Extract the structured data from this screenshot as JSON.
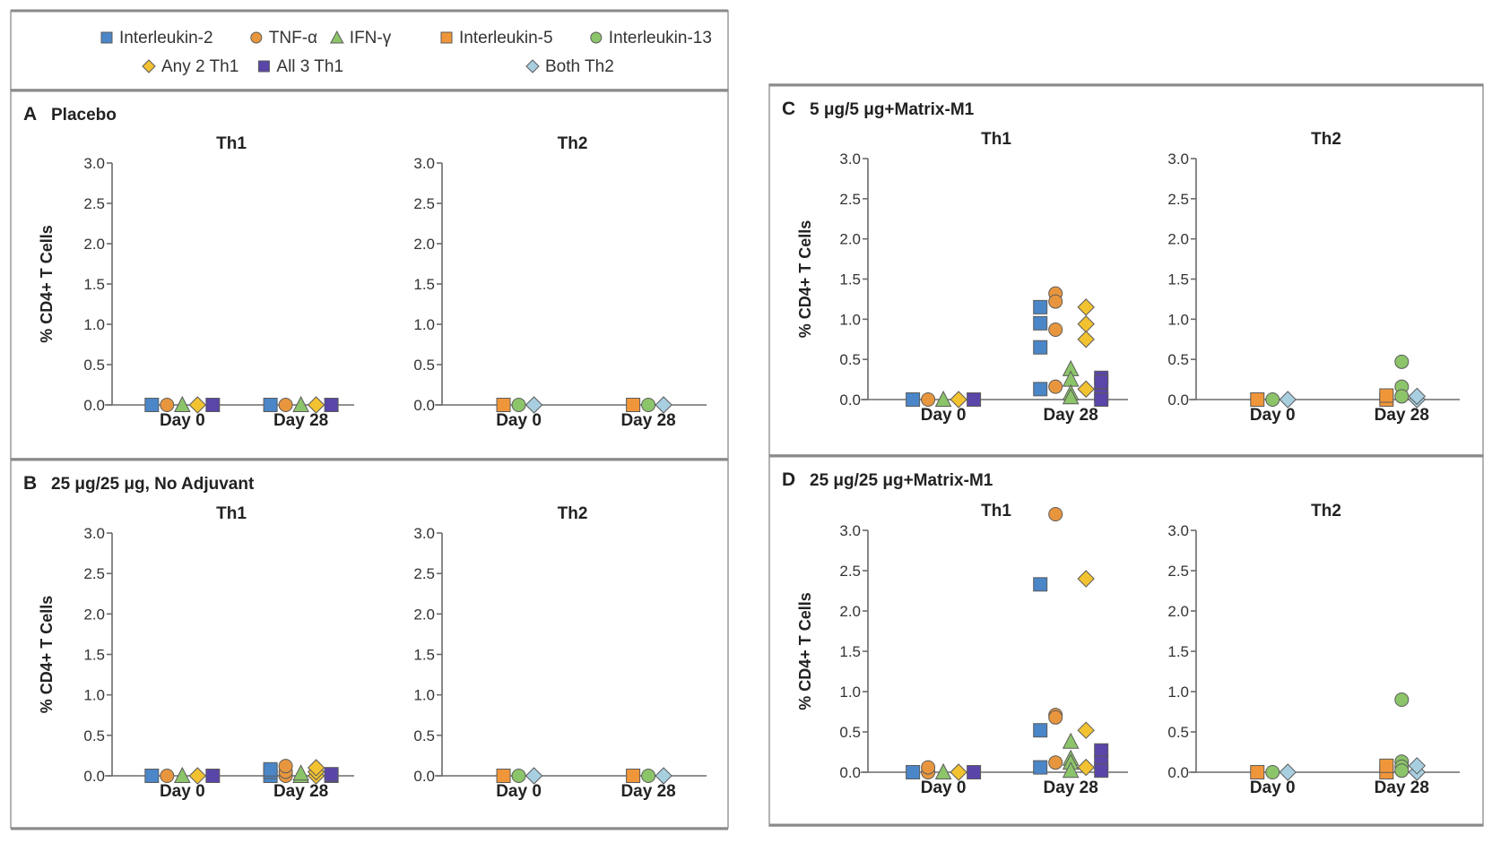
{
  "legend": {
    "th1": [
      {
        "key": "il2",
        "label": "Interleukin-2",
        "shape": "square",
        "color": "#4a86c8"
      },
      {
        "key": "tnf",
        "label": "TNF-α",
        "shape": "circle",
        "color": "#e8963e"
      },
      {
        "key": "ifn",
        "label": "IFN-γ",
        "shape": "triangle",
        "color": "#8cc46a"
      }
    ],
    "th1_row2": [
      {
        "key": "any2",
        "label": "Any 2 Th1",
        "shape": "diamond",
        "color": "#f2c230"
      },
      {
        "key": "all3",
        "label": "All 3 Th1",
        "shape": "square",
        "color": "#5a45a8"
      }
    ],
    "th2": [
      {
        "key": "il5",
        "label": "Interleukin-5",
        "shape": "square",
        "color": "#f0963a"
      },
      {
        "key": "il13",
        "label": "Interleukin-13",
        "shape": "circle",
        "color": "#8cc46a"
      }
    ],
    "th2_row2": [
      {
        "key": "both",
        "label": "Both Th2",
        "shape": "diamond",
        "color": "#a8cfe0"
      }
    ]
  },
  "chart_data": [
    {
      "panel": "A",
      "title": "Placebo",
      "type": "scatter",
      "ylabel": "% CD4+ T Cells",
      "ylim": [
        0,
        3.0
      ],
      "yticks": [
        "0.0",
        "0.5",
        "1.0",
        "1.5",
        "2.0",
        "2.5",
        "3.0"
      ],
      "subplots": [
        {
          "name": "Th1",
          "categories": [
            "Day 0",
            "Day 28"
          ],
          "series": [
            {
              "key": "il2",
              "values": [
                [
                  0
                ],
                [
                  0
                ]
              ]
            },
            {
              "key": "tnf",
              "values": [
                [
                  0
                ],
                [
                  0
                ]
              ]
            },
            {
              "key": "ifn",
              "values": [
                [
                  0
                ],
                [
                  0
                ]
              ]
            },
            {
              "key": "any2",
              "values": [
                [
                  0
                ],
                [
                  0
                ]
              ]
            },
            {
              "key": "all3",
              "values": [
                [
                  0
                ],
                [
                  0
                ]
              ]
            }
          ]
        },
        {
          "name": "Th2",
          "categories": [
            "Day 0",
            "Day 28"
          ],
          "series": [
            {
              "key": "il5",
              "values": [
                [
                  0
                ],
                [
                  0
                ]
              ]
            },
            {
              "key": "il13",
              "values": [
                [
                  0
                ],
                [
                  0
                ]
              ]
            },
            {
              "key": "both",
              "values": [
                [
                  0
                ],
                [
                  0
                ]
              ]
            }
          ]
        }
      ]
    },
    {
      "panel": "B",
      "title": "25 μg/25 μg, No Adjuvant",
      "type": "scatter",
      "ylabel": "% CD4+ T Cells",
      "ylim": [
        0,
        3.0
      ],
      "yticks": [
        "0.0",
        "0.5",
        "1.0",
        "1.5",
        "2.0",
        "2.5",
        "3.0"
      ],
      "subplots": [
        {
          "name": "Th1",
          "categories": [
            "Day 0",
            "Day 28"
          ],
          "series": [
            {
              "key": "il2",
              "values": [
                [
                  0
                ],
                [
                  0,
                  0.05,
                  0.08
                ]
              ]
            },
            {
              "key": "tnf",
              "values": [
                [
                  0
                ],
                [
                  0,
                  0.05,
                  0.12
                ]
              ]
            },
            {
              "key": "ifn",
              "values": [
                [
                  0
                ],
                [
                  0,
                  0.03
                ]
              ]
            },
            {
              "key": "any2",
              "values": [
                [
                  0
                ],
                [
                  0,
                  0.05,
                  0.1
                ]
              ]
            },
            {
              "key": "all3",
              "values": [
                [
                  0
                ],
                [
                  0,
                  0.02
                ]
              ]
            }
          ]
        },
        {
          "name": "Th2",
          "categories": [
            "Day 0",
            "Day 28"
          ],
          "series": [
            {
              "key": "il5",
              "values": [
                [
                  0
                ],
                [
                  0
                ]
              ]
            },
            {
              "key": "il13",
              "values": [
                [
                  0
                ],
                [
                  0
                ]
              ]
            },
            {
              "key": "both",
              "values": [
                [
                  0
                ],
                [
                  0
                ]
              ]
            }
          ]
        }
      ]
    },
    {
      "panel": "C",
      "title": "5 μg/5 μg+Matrix-M1",
      "type": "scatter",
      "ylabel": "% CD4+ T Cells",
      "ylim": [
        0,
        3.0
      ],
      "yticks": [
        "0.0",
        "0.5",
        "1.0",
        "1.5",
        "2.0",
        "2.5",
        "3.0"
      ],
      "subplots": [
        {
          "name": "Th1",
          "categories": [
            "Day 0",
            "Day 28"
          ],
          "series": [
            {
              "key": "il2",
              "values": [
                [
                  0
                ],
                [
                  1.15,
                  0.95,
                  0.65,
                  0.13
                ]
              ]
            },
            {
              "key": "tnf",
              "values": [
                [
                  0
                ],
                [
                  1.32,
                  1.22,
                  0.87,
                  0.16
                ]
              ]
            },
            {
              "key": "ifn",
              "values": [
                [
                  0
                ],
                [
                  0.38,
                  0.25,
                  0.08,
                  0.03
                ]
              ]
            },
            {
              "key": "any2",
              "values": [
                [
                  0
                ],
                [
                  1.15,
                  0.94,
                  0.75,
                  0.13
                ]
              ]
            },
            {
              "key": "all3",
              "values": [
                [
                  0
                ],
                [
                  0.27,
                  0.22,
                  0.05,
                  0.0
                ]
              ]
            }
          ]
        },
        {
          "name": "Th2",
          "categories": [
            "Day 0",
            "Day 28"
          ],
          "series": [
            {
              "key": "il5",
              "values": [
                [
                  0
                ],
                [
                  0.0,
                  0.05
                ]
              ]
            },
            {
              "key": "il13",
              "values": [
                [
                  0
                ],
                [
                  0.47,
                  0.16,
                  0.04
                ]
              ]
            },
            {
              "key": "both",
              "values": [
                [
                  0
                ],
                [
                  0.0,
                  0.04
                ]
              ]
            }
          ]
        }
      ]
    },
    {
      "panel": "D",
      "title": "25 μg/25 μg+Matrix-M1",
      "type": "scatter",
      "ylabel": "% CD4+ T Cells",
      "ylim": [
        0,
        3.0
      ],
      "yticks": [
        "0.0",
        "0.5",
        "1.0",
        "1.5",
        "2.0",
        "2.5",
        "3.0"
      ],
      "subplots": [
        {
          "name": "Th1",
          "categories": [
            "Day 0",
            "Day 28"
          ],
          "series": [
            {
              "key": "il2",
              "values": [
                [
                  0
                ],
                [
                  2.33,
                  0.52,
                  0.06
                ]
              ]
            },
            {
              "key": "tnf",
              "values": [
                [
                  0,
                  0.06
                ],
                [
                  3.2,
                  0.71,
                  0.68,
                  0.12
                ]
              ]
            },
            {
              "key": "ifn",
              "values": [
                [
                  0
                ],
                [
                  0.38,
                  0.17,
                  0.12,
                  0.02
                ]
              ]
            },
            {
              "key": "any2",
              "values": [
                [
                  0
                ],
                [
                  2.4,
                  0.52,
                  0.06
                ]
              ]
            },
            {
              "key": "all3",
              "values": [
                [
                  0
                ],
                [
                  0.27,
                  0.12,
                  0.02
                ]
              ]
            }
          ]
        },
        {
          "name": "Th2",
          "categories": [
            "Day 0",
            "Day 28"
          ],
          "series": [
            {
              "key": "il5",
              "values": [
                [
                  0
                ],
                [
                  0.0,
                  0.08
                ]
              ]
            },
            {
              "key": "il13",
              "values": [
                [
                  0
                ],
                [
                  0.9,
                  0.13,
                  0.07,
                  0.02
                ]
              ]
            },
            {
              "key": "both",
              "values": [
                [
                  0
                ],
                [
                  0.0,
                  0.08
                ]
              ]
            }
          ]
        }
      ]
    }
  ]
}
